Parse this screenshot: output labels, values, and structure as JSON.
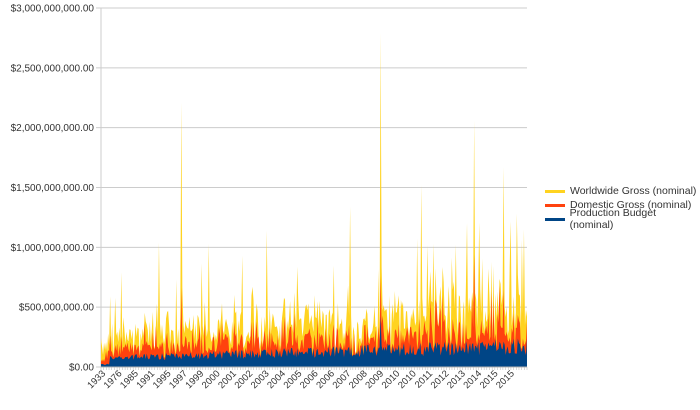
{
  "chart_data": {
    "type": "area",
    "title": "",
    "xlabel": "",
    "ylabel": "",
    "ylim": [
      0,
      3000000000
    ],
    "yticks": [
      "$0.00",
      "$500,000,000.00",
      "$1,000,000,000.00",
      "$1,500,000,000.00",
      "$2,000,000,000.00",
      "$2,500,000,000.00",
      "$3,000,000,000.00"
    ],
    "x_tick_labels": [
      "1933",
      "1976",
      "1985",
      "1991",
      "1995",
      "1997",
      "1999",
      "2000",
      "2001",
      "2002",
      "2003",
      "2004",
      "2005",
      "2006",
      "2006",
      "2007",
      "2008",
      "2009",
      "2010",
      "2010",
      "2011",
      "2012",
      "2013",
      "2014",
      "2015",
      "2015"
    ],
    "grid": true,
    "legend_position": "right",
    "series": [
      {
        "name": "Worldwide Gross (nominal)",
        "color": "#ffd320",
        "notable_peaks": [
          {
            "x_frac": 0.188,
            "value": 2210000000
          },
          {
            "x_frac": 0.656,
            "value": 2790000000
          },
          {
            "x_frac": 0.876,
            "value": 2060000000
          },
          {
            "x_frac": 0.945,
            "value": 1670000000
          },
          {
            "x_frac": 0.752,
            "value": 1520000000
          },
          {
            "x_frac": 0.585,
            "value": 1340000000
          },
          {
            "x_frac": 0.389,
            "value": 1140000000
          },
          {
            "x_frac": 0.135,
            "value": 1040000000
          },
          {
            "x_frac": 0.254,
            "value": 1030000000
          },
          {
            "x_frac": 0.993,
            "value": 1150000000
          }
        ],
        "typical_range": [
          150000000,
          900000000
        ]
      },
      {
        "name": "Domestic Gross (nominal)",
        "color": "#ff420e",
        "notable_peaks": [
          {
            "x_frac": 0.188,
            "value": 660000000
          },
          {
            "x_frac": 0.656,
            "value": 760000000
          },
          {
            "x_frac": 0.876,
            "value": 940000000
          },
          {
            "x_frac": 0.945,
            "value": 650000000
          }
        ],
        "typical_range": [
          80000000,
          400000000
        ]
      },
      {
        "name": "Production Budget (nominal)",
        "color": "#004586",
        "notable_peaks": [
          {
            "x_frac": 0.656,
            "value": 425000000
          }
        ],
        "typical_range": [
          10000000,
          250000000
        ]
      }
    ]
  },
  "legend": {
    "items": [
      {
        "label": "Worldwide Gross (nominal)",
        "color": "#ffd320"
      },
      {
        "label": "Domestic Gross (nominal)",
        "color": "#ff420e"
      },
      {
        "label": "Production Budget (nominal)",
        "color": "#004586"
      }
    ]
  }
}
